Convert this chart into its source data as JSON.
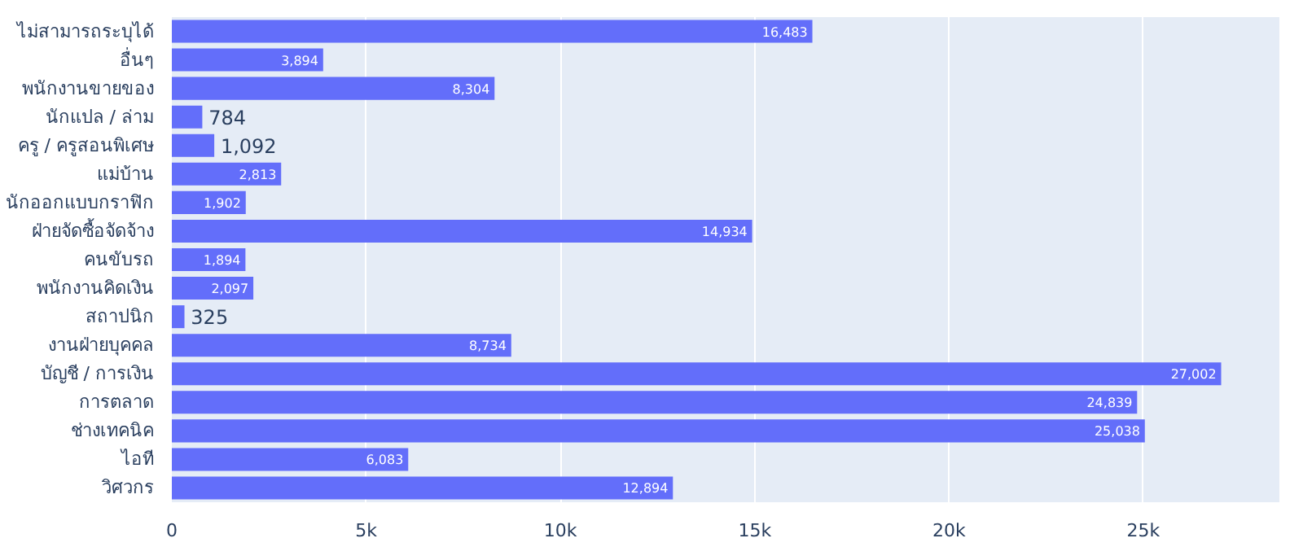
{
  "chart_data": {
    "type": "bar",
    "orientation": "horizontal",
    "categories": [
      "ไม่สามารถระบุได้",
      "อื่นๆ",
      "พนักงานขายของ",
      "นักแปล / ล่าม",
      "ครู / ครูสอนพิเศษ",
      "แม่บ้าน",
      "นักออกแบบกราฟิก",
      "ฝ่ายจัดซื้อจัดจ้าง",
      "คนขับรถ",
      "พนักงานคิดเงิน",
      "สถาปนิก",
      "งานฝ่ายบุคคล",
      "บัญชี / การเงิน",
      "การตลาด",
      "ช่างเทคนิค",
      "ไอที",
      "วิศวกร"
    ],
    "values": [
      16483,
      3894,
      8304,
      784,
      1092,
      2813,
      1902,
      14934,
      1894,
      2097,
      325,
      8734,
      27002,
      24839,
      25038,
      6083,
      12894
    ],
    "value_labels": [
      "16,483",
      "3,894",
      "8,304",
      "784",
      "1,092",
      "2,813",
      "1,902",
      "14,934",
      "1,894",
      "2,097",
      "325",
      "8,734",
      "27,002",
      "24,839",
      "25,038",
      "6,083",
      "12,894"
    ],
    "color": "#636efa",
    "xlim": [
      0,
      28500
    ],
    "xticks": [
      0,
      {
        "value": 5000,
        "label": "5k"
      },
      {
        "value": 10000,
        "label": "10k"
      },
      {
        "value": 15000,
        "label": "15k"
      },
      {
        "value": 20000,
        "label": "20k"
      },
      {
        "value": 25000,
        "label": "25k"
      }
    ],
    "grid": "x"
  }
}
